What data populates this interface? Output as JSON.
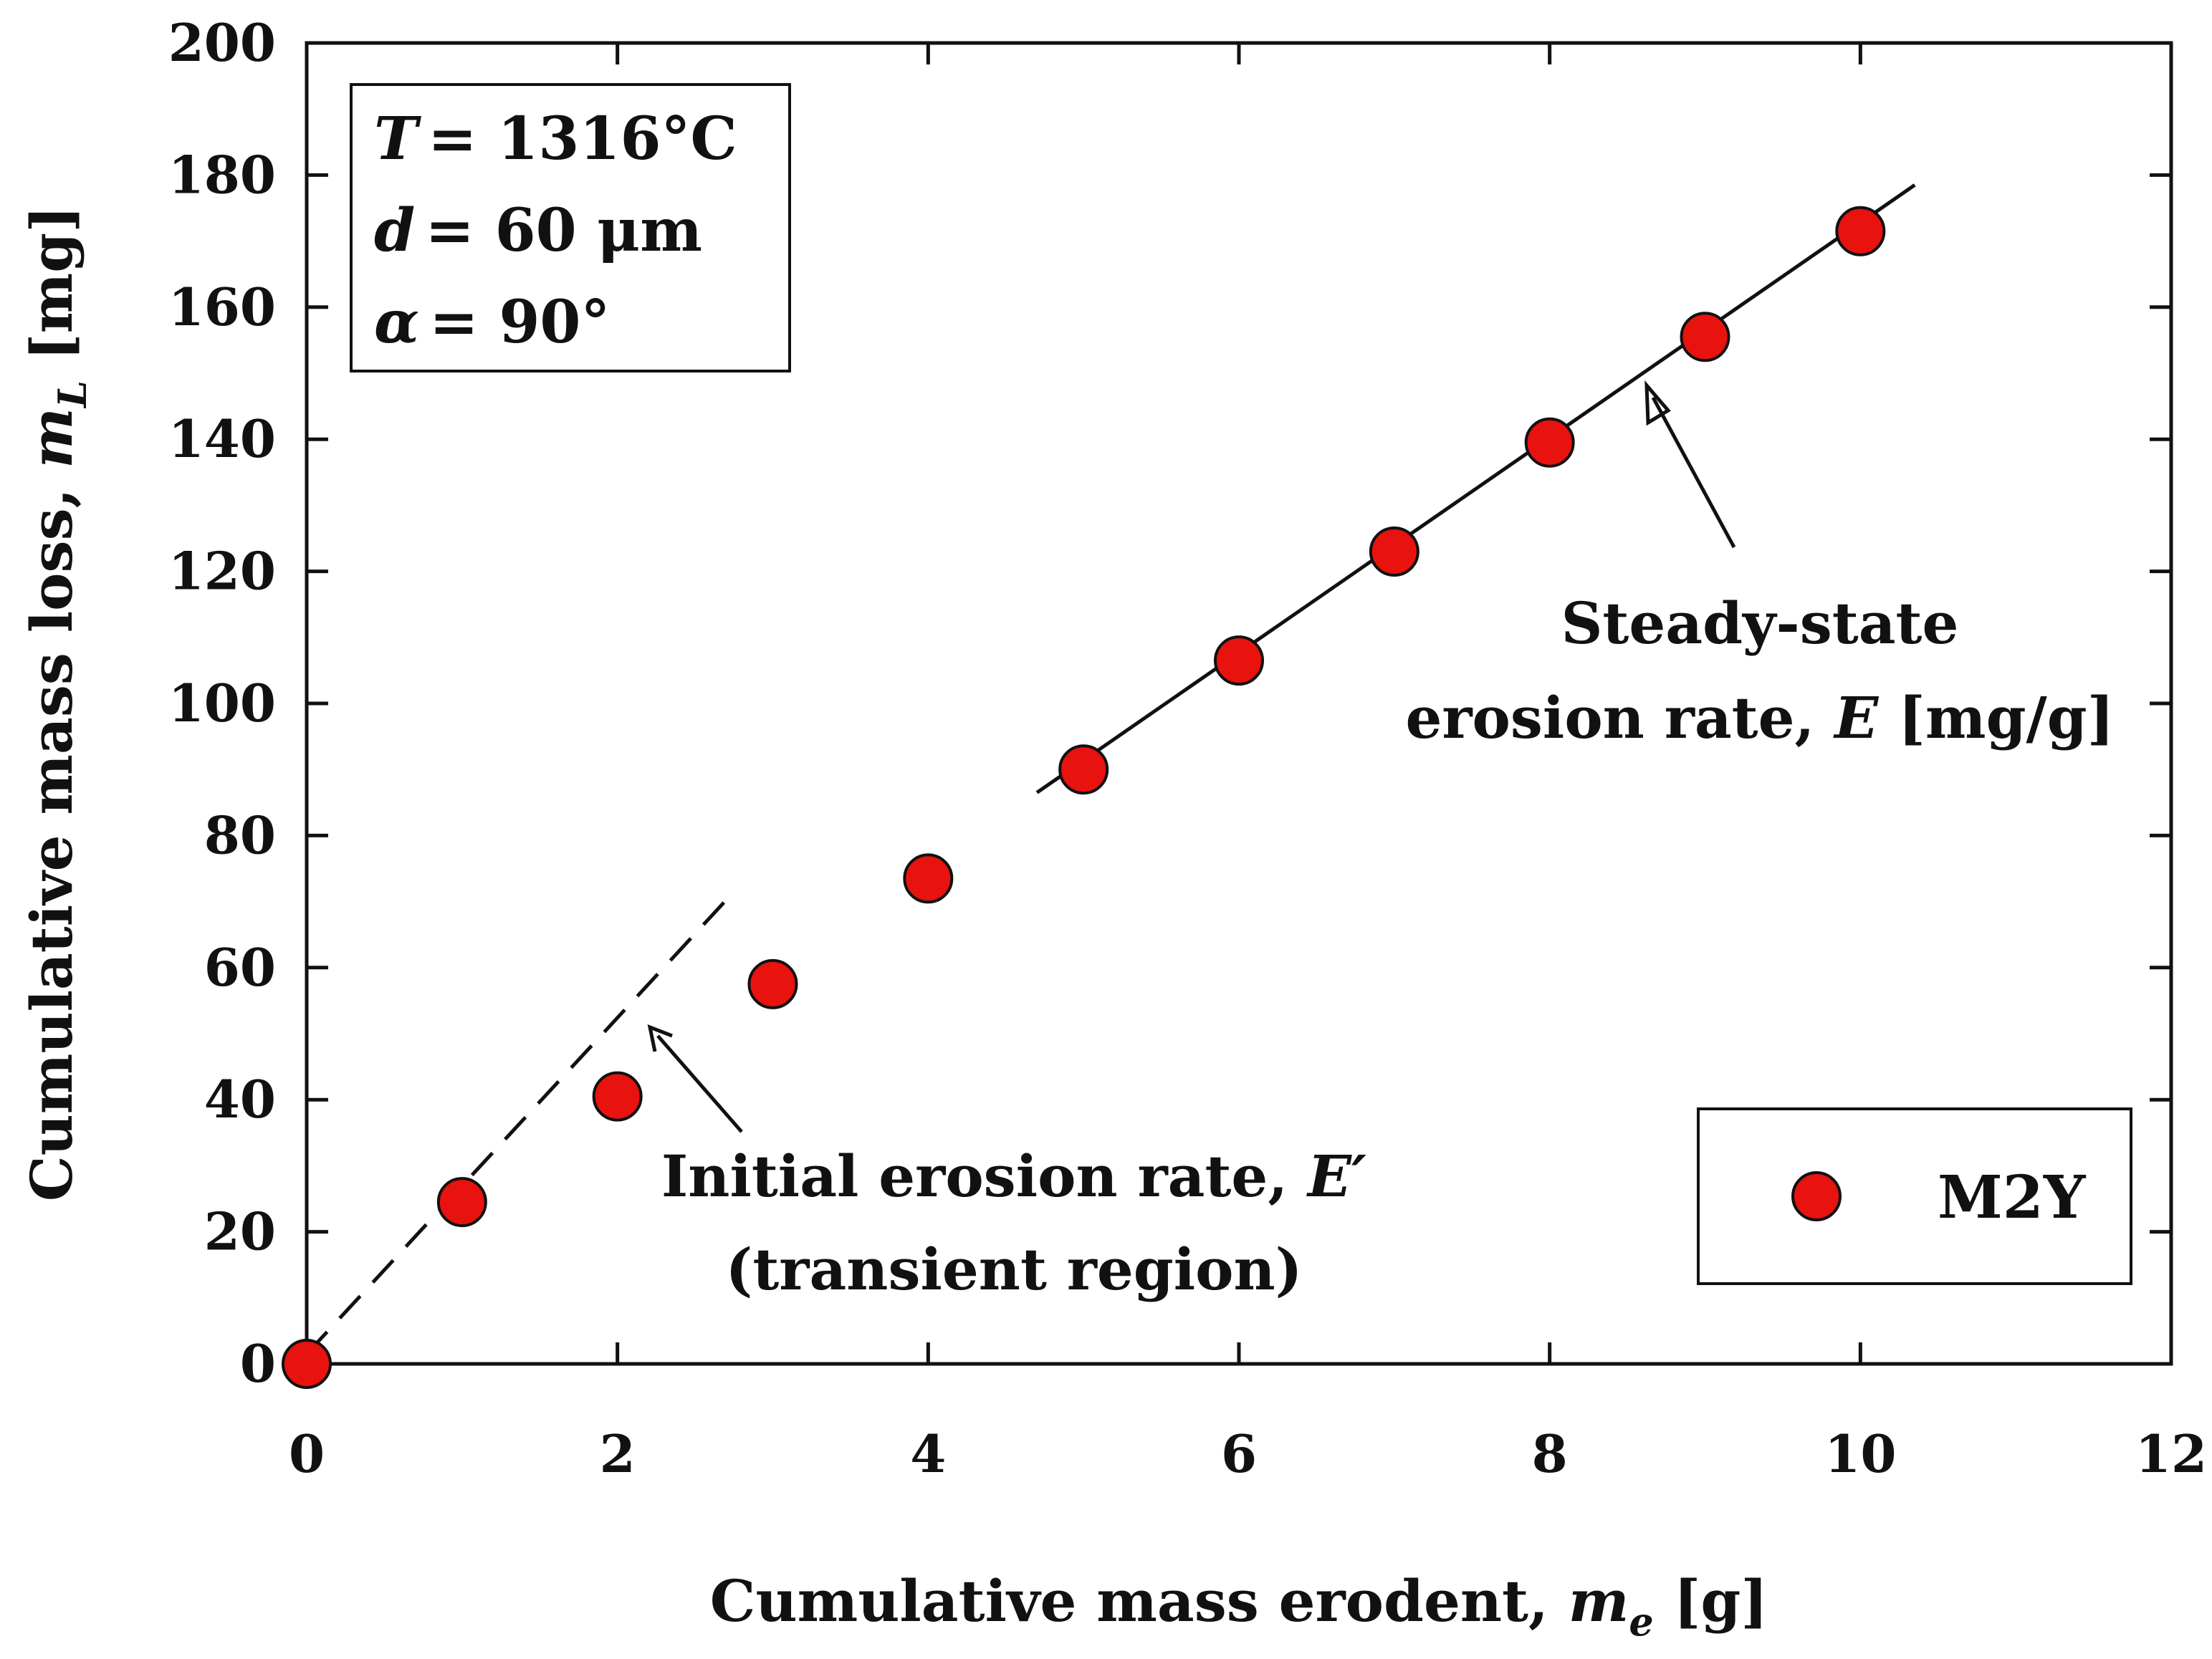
{
  "chart_data": {
    "type": "scatter",
    "xlabel": "Cumulative mass erodent, m_e [g]",
    "ylabel": "Cumulative mass loss, m_L [mg]",
    "xlim": [
      0,
      12
    ],
    "ylim": [
      0,
      200
    ],
    "xticks": [
      0,
      2,
      4,
      6,
      8,
      10,
      12
    ],
    "yticks": [
      0,
      20,
      40,
      60,
      80,
      100,
      120,
      140,
      160,
      180,
      200
    ],
    "grid": false,
    "legend_position": "bottom-right",
    "series": [
      {
        "name": "M2Y",
        "marker": "circle",
        "color": "#e8120f",
        "x": [
          0,
          1,
          2,
          3,
          4,
          5,
          6,
          7,
          8,
          9,
          10
        ],
        "y": [
          0,
          24.5,
          40.5,
          57.5,
          73.5,
          90,
          106.5,
          123,
          139.5,
          155.5,
          171.5
        ]
      }
    ],
    "lines": [
      {
        "style": "dashed",
        "x": [
          0,
          2.75
        ],
        "y": [
          1.5,
          71.5
        ]
      },
      {
        "style": "solid",
        "x": [
          4.7,
          10.35
        ],
        "y": [
          86.5,
          178.5
        ]
      }
    ],
    "conditions": {
      "T": {
        "symbol": "T",
        "value": "= 1316°C"
      },
      "d": {
        "symbol": "d",
        "value": "= 60 μm"
      },
      "alpha": {
        "symbol": "α",
        "value": "= 90°"
      }
    },
    "annotations": {
      "steady": {
        "line1": "Steady-state",
        "line2_text": "erosion rate, ",
        "line2_symbol": "E",
        "line2_unit": " [mg/g]"
      },
      "initial": {
        "line1_text": "Initial erosion rate, ",
        "line1_symbol": "E′",
        "line2": "(transient region)"
      }
    },
    "axis_titles": {
      "x_text": "Cumulative mass erodent, ",
      "x_symbol": "m",
      "x_sub": "e",
      "x_unit": " [g]",
      "y_text": "Cumulative mass loss, ",
      "y_symbol": "m",
      "y_sub": "L",
      "y_unit": " [mg]"
    }
  }
}
